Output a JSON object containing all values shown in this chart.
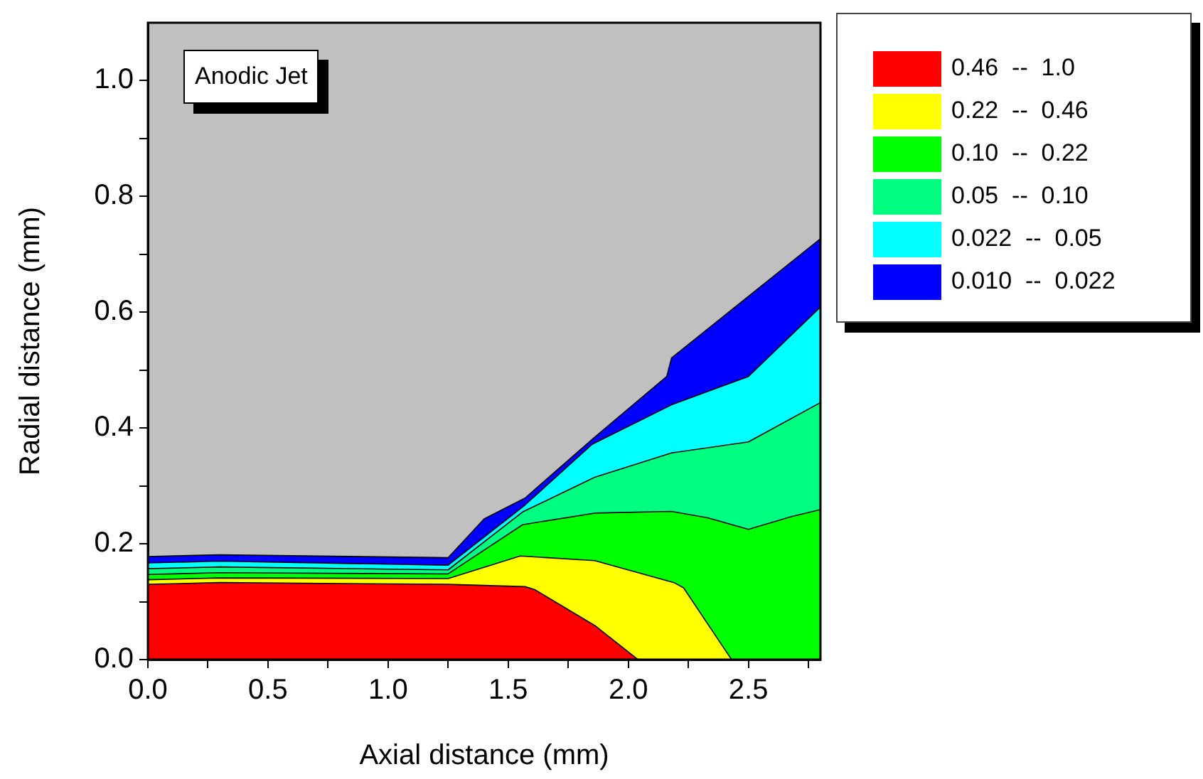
{
  "chart_data": {
    "type": "area",
    "xlabel": "Axial distance (mm)",
    "ylabel": "Radial distance (mm)",
    "annotations": [
      "Anodic Jet"
    ],
    "xlim": [
      0,
      2.8
    ],
    "ylim": [
      0,
      1.1
    ],
    "xticks": [
      {
        "value": 0,
        "label": "0.0"
      },
      {
        "value": 0.25,
        "label": null
      },
      {
        "value": 0.5,
        "label": "0.5"
      },
      {
        "value": 0.75,
        "label": null
      },
      {
        "value": 1,
        "label": "1.0"
      },
      {
        "value": 1.25,
        "label": null
      },
      {
        "value": 1.5,
        "label": "1.5"
      },
      {
        "value": 1.75,
        "label": null
      },
      {
        "value": 2,
        "label": "2.0"
      },
      {
        "value": 2.25,
        "label": null
      },
      {
        "value": 2.5,
        "label": "2.5"
      },
      {
        "value": 2.75,
        "label": null
      }
    ],
    "yticks": [
      {
        "value": 0,
        "label": "0.0"
      },
      {
        "value": 0.1,
        "label": null
      },
      {
        "value": 0.2,
        "label": "0.2"
      },
      {
        "value": 0.3,
        "label": null
      },
      {
        "value": 0.4,
        "label": "0.4"
      },
      {
        "value": 0.5,
        "label": null
      },
      {
        "value": 0.6,
        "label": "0.6"
      },
      {
        "value": 0.7,
        "label": null
      },
      {
        "value": 0.8,
        "label": "0.8"
      },
      {
        "value": 0.9,
        "label": null
      },
      {
        "value": 1,
        "label": "1.0"
      }
    ],
    "grid": false,
    "legend": "right",
    "series": [
      {
        "name": "0.46  --  1.0",
        "color": "#ff0000",
        "x": [
          0,
          0.3,
          1.25,
          1.57,
          1.61,
          1.86,
          2.04
        ],
        "values": [
          0.13,
          0.133,
          0.13,
          0.126,
          0.121,
          0.059,
          0
        ]
      },
      {
        "name": "0.22  --  0.46",
        "color": "#ffff00",
        "x": [
          0,
          0.3,
          1.25,
          1.55,
          1.86,
          2.19,
          2.23,
          2.43
        ],
        "values": [
          0.138,
          0.141,
          0.14,
          0.179,
          0.171,
          0.133,
          0.124,
          0
        ]
      },
      {
        "name": "0.10  --  0.22",
        "color": "#00ff00",
        "x": [
          0,
          0.3,
          1.25,
          1.56,
          1.86,
          2.18,
          2.33,
          2.5,
          2.68,
          2.8
        ],
        "values": [
          0.147,
          0.15,
          0.148,
          0.233,
          0.253,
          0.256,
          0.245,
          0.225,
          0.247,
          0.259
        ]
      },
      {
        "name": "0.05  --  0.10",
        "color": "#00ff80",
        "x": [
          0,
          0.3,
          1.25,
          1.56,
          1.86,
          2.18,
          2.5,
          2.8
        ],
        "values": [
          0.157,
          0.16,
          0.155,
          0.255,
          0.315,
          0.357,
          0.376,
          0.444
        ]
      },
      {
        "name": "0.022  --  0.05",
        "color": "#00ffff",
        "x": [
          0,
          0.3,
          1.25,
          1.57,
          1.85,
          2.18,
          2.5,
          2.8
        ],
        "values": [
          0.167,
          0.17,
          0.163,
          0.267,
          0.372,
          0.44,
          0.489,
          0.609
        ]
      },
      {
        "name": "0.010  --  0.022",
        "color": "#0000ff",
        "x": [
          0,
          0.3,
          1.25,
          1.4,
          1.57,
          1.86,
          2.16,
          2.18,
          2.8
        ],
        "values": [
          0.178,
          0.181,
          0.176,
          0.243,
          0.279,
          0.384,
          0.489,
          0.521,
          0.727
        ]
      }
    ]
  }
}
